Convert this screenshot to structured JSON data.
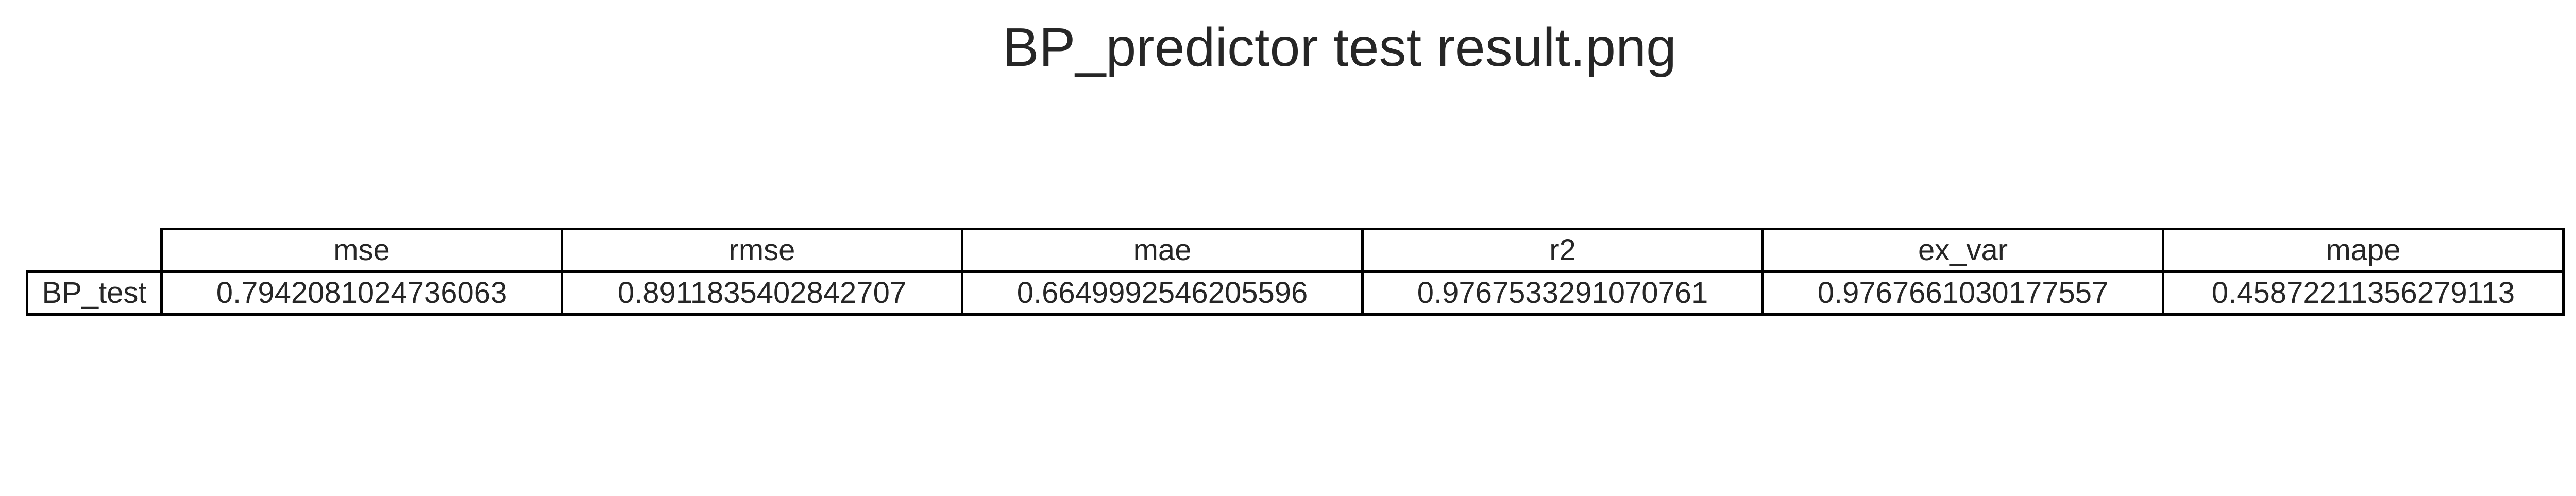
{
  "chart_data": {
    "type": "table",
    "title": "BP_predictor test result.png",
    "columns": [
      "mse",
      "rmse",
      "mae",
      "r2",
      "ex_var",
      "mape"
    ],
    "rows": [
      {
        "label": "BP_test",
        "values": [
          "0.7942081024736063",
          "0.8911835402842707",
          "0.6649992546205596",
          "0.9767533291070761",
          "0.9767661030177557",
          "0.45872211356279113"
        ]
      }
    ]
  }
}
